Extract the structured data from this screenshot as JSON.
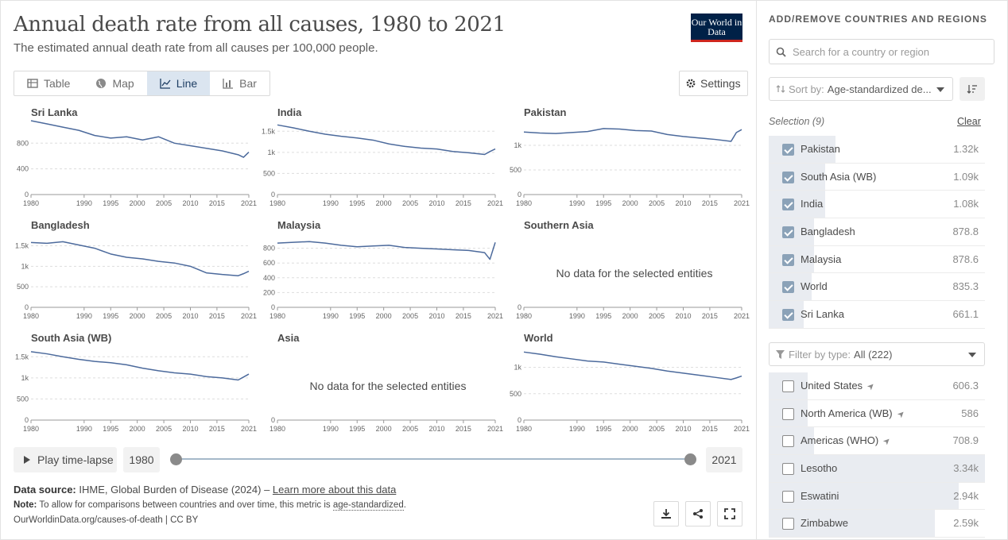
{
  "header": {
    "title": "Annual death rate from all causes, 1980 to 2021",
    "subtitle": "The estimated annual death rate from all causes per 100,000 people.",
    "logo_text": "Our World in Data"
  },
  "tabs": [
    {
      "label": "Table",
      "icon": "table-icon",
      "active": false
    },
    {
      "label": "Map",
      "icon": "globe-icon",
      "active": false
    },
    {
      "label": "Line",
      "icon": "line-chart-icon",
      "active": true
    },
    {
      "label": "Bar",
      "icon": "bar-chart-icon",
      "active": false
    }
  ],
  "settings_label": "Settings",
  "no_data_text": "No data for the selected entities",
  "timeline": {
    "play_label": "Play time-lapse",
    "start_year": "1980",
    "end_year": "2021"
  },
  "footer": {
    "source_label": "Data source:",
    "source_text": "IHME, Global Burden of Disease (2024)",
    "source_sep": "–",
    "learn_more": "Learn more about this data",
    "note_label": "Note:",
    "note_text": "To allow for comparisons between countries and over time, this metric is",
    "note_term": "age-standardized",
    "note_end": ".",
    "credit": "OurWorldinData.org/causes-of-death | CC BY"
  },
  "sidebar": {
    "heading": "ADD/REMOVE COUNTRIES AND REGIONS",
    "search_placeholder": "Search for a country or region",
    "sort_label": "Sort by:",
    "sort_value": "Age-standardized de...",
    "selection_label": "Selection (9)",
    "clear_label": "Clear",
    "filter_label": "Filter by type:",
    "filter_value": "All (222)",
    "selected": [
      {
        "name": "Pakistan",
        "value": "1.32k",
        "bar": 0.31
      },
      {
        "name": "South Asia (WB)",
        "value": "1.09k",
        "bar": 0.26
      },
      {
        "name": "India",
        "value": "1.08k",
        "bar": 0.26
      },
      {
        "name": "Bangladesh",
        "value": "878.8",
        "bar": 0.21
      },
      {
        "name": "Malaysia",
        "value": "878.6",
        "bar": 0.21
      },
      {
        "name": "World",
        "value": "835.3",
        "bar": 0.2
      },
      {
        "name": "Sri Lanka",
        "value": "661.1",
        "bar": 0.16
      }
    ],
    "available": [
      {
        "name": "United States",
        "value": "606.3",
        "bar": 0.18,
        "arrow": true
      },
      {
        "name": "North America (WB)",
        "value": "586",
        "bar": 0.18,
        "arrow": true
      },
      {
        "name": "Americas (WHO)",
        "value": "708.9",
        "bar": 0.21,
        "arrow": true
      },
      {
        "name": "Lesotho",
        "value": "3.34k",
        "bar": 1.0,
        "arrow": false
      },
      {
        "name": "Eswatini",
        "value": "2.94k",
        "bar": 0.88,
        "arrow": false
      },
      {
        "name": "Zimbabwe",
        "value": "2.59k",
        "bar": 0.77,
        "arrow": false
      }
    ]
  },
  "chart_data": {
    "type": "line",
    "years": [
      1980,
      1983,
      1986,
      1989,
      1992,
      1995,
      1998,
      2001,
      2004,
      2007,
      2010,
      2013,
      2016,
      2019,
      2020,
      2021
    ],
    "x_ticks": [
      1980,
      1990,
      1995,
      2000,
      2005,
      2010,
      2015,
      2021
    ],
    "xlim": [
      1980,
      2021
    ],
    "panels": [
      {
        "name": "Sri Lanka",
        "ticks": [
          "0",
          "400",
          "800"
        ],
        "tick_values": [
          0,
          400,
          800
        ],
        "ymax": 1150,
        "values": [
          1150,
          1100,
          1050,
          1000,
          920,
          880,
          900,
          850,
          900,
          800,
          760,
          720,
          680,
          620,
          580,
          661
        ]
      },
      {
        "name": "India",
        "ticks": [
          "0",
          "500",
          "1k",
          "1.5k"
        ],
        "tick_values": [
          0,
          500,
          1000,
          1500
        ],
        "ymax": 1750,
        "values": [
          1650,
          1580,
          1500,
          1430,
          1380,
          1340,
          1290,
          1200,
          1140,
          1100,
          1080,
          1020,
          990,
          950,
          1020,
          1080
        ]
      },
      {
        "name": "Pakistan",
        "ticks": [
          "0",
          "500",
          "1k"
        ],
        "tick_values": [
          0,
          500,
          1000
        ],
        "ymax": 1500,
        "values": [
          1270,
          1250,
          1240,
          1260,
          1280,
          1340,
          1330,
          1300,
          1290,
          1220,
          1180,
          1150,
          1120,
          1080,
          1260,
          1320
        ]
      },
      {
        "name": "Bangladesh",
        "ticks": [
          "0",
          "500",
          "1k",
          "1.5k"
        ],
        "tick_values": [
          0,
          500,
          1000,
          1500
        ],
        "ymax": 1800,
        "values": [
          1580,
          1560,
          1600,
          1520,
          1440,
          1300,
          1220,
          1180,
          1120,
          1080,
          1000,
          840,
          800,
          770,
          820,
          879
        ]
      },
      {
        "name": "Malaysia",
        "ticks": [
          "0",
          "200",
          "400",
          "600",
          "800"
        ],
        "tick_values": [
          0,
          200,
          400,
          600,
          800
        ],
        "ymax": 1000,
        "values": [
          870,
          880,
          890,
          870,
          840,
          820,
          830,
          840,
          810,
          800,
          790,
          780,
          770,
          740,
          650,
          879
        ]
      },
      {
        "name": "Southern Asia",
        "no_data": true,
        "ticks": [
          "0"
        ],
        "tick_values": [
          0
        ],
        "ymax": 1000,
        "values": []
      },
      {
        "name": "South Asia (WB)",
        "ticks": [
          "0",
          "500",
          "1k",
          "1.5k"
        ],
        "tick_values": [
          0,
          500,
          1000,
          1500
        ],
        "ymax": 1750,
        "values": [
          1620,
          1570,
          1500,
          1440,
          1390,
          1360,
          1310,
          1230,
          1170,
          1120,
          1090,
          1030,
          1000,
          950,
          1020,
          1090
        ]
      },
      {
        "name": "Asia",
        "no_data": true,
        "ticks": [
          "0"
        ],
        "tick_values": [
          0
        ],
        "ymax": 1000,
        "values": []
      },
      {
        "name": "World",
        "ticks": [
          "0",
          "500",
          "1k"
        ],
        "tick_values": [
          0,
          500,
          1000
        ],
        "ymax": 1400,
        "values": [
          1290,
          1250,
          1200,
          1160,
          1120,
          1100,
          1060,
          1020,
          980,
          930,
          890,
          850,
          810,
          770,
          800,
          835
        ]
      }
    ]
  }
}
